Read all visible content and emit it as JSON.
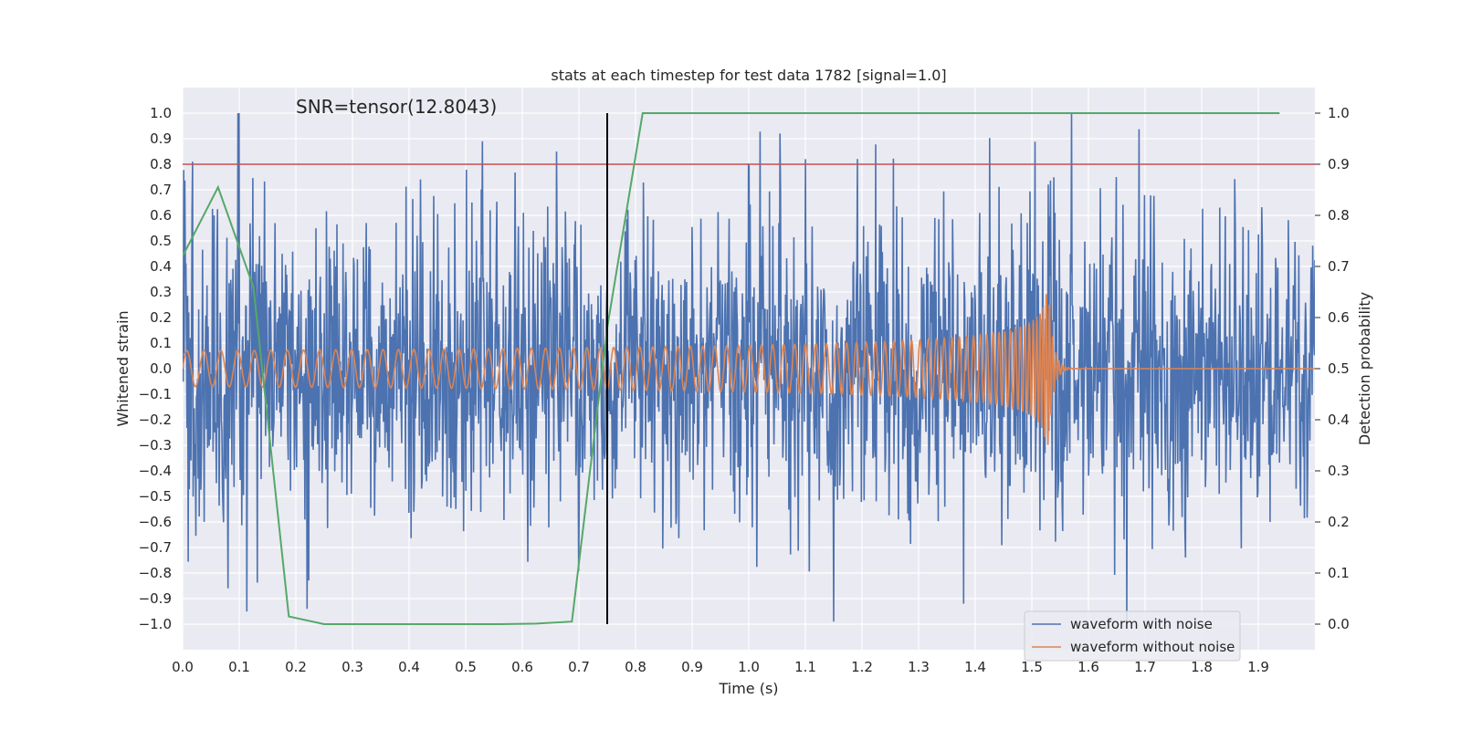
{
  "chart_data": {
    "type": "line",
    "title": "stats at each timestep for test data 1782 [signal=1.0]",
    "xlabel": "Time (s)",
    "ylabel": "Whitened strain",
    "ylabel_right": "Detection probability",
    "xlim": [
      0.0,
      2.0
    ],
    "ylim": [
      -1.1,
      1.1
    ],
    "ylim_right": [
      -0.05,
      1.05
    ],
    "xticks": [
      0.0,
      0.1,
      0.2,
      0.3,
      0.4,
      0.5,
      0.6,
      0.7,
      0.8,
      0.9,
      1.0,
      1.1,
      1.2,
      1.3,
      1.4,
      1.5,
      1.6,
      1.7,
      1.8,
      1.9
    ],
    "xtick_labels": [
      "0.0",
      "0.1",
      "0.2",
      "0.3",
      "0.4",
      "0.5",
      "0.6",
      "0.7",
      "0.8",
      "0.9",
      "1.0",
      "1.1",
      "1.2",
      "1.3",
      "1.4",
      "1.5",
      "1.6",
      "1.7",
      "1.8",
      "1.9"
    ],
    "yticks": [
      1.0,
      0.9,
      0.8,
      0.7,
      0.6,
      0.5,
      0.4,
      0.3,
      0.2,
      0.1,
      0.0,
      -0.1,
      -0.2,
      -0.3,
      -0.4,
      -0.5,
      -0.6,
      -0.7,
      -0.8,
      -0.9,
      -1.0
    ],
    "ytick_labels": [
      "1.0",
      "0.9",
      "0.8",
      "0.7",
      "0.6",
      "0.5",
      "0.4",
      "0.3",
      "0.2",
      "0.1",
      "0.0",
      "−0.1",
      "−0.2",
      "−0.3",
      "−0.4",
      "−0.5",
      "−0.6",
      "−0.7",
      "−0.8",
      "−0.9",
      "−1.0"
    ],
    "yticks_right": [
      1.0,
      0.9,
      0.8,
      0.7,
      0.6,
      0.5,
      0.4,
      0.3,
      0.2,
      0.1,
      0.0
    ],
    "ytick_labels_right": [
      "1.0",
      "0.9",
      "0.8",
      "0.7",
      "0.6",
      "0.5",
      "0.4",
      "0.3",
      "0.2",
      "0.1",
      "0.0"
    ],
    "grid": true,
    "legend_position": "bottom-right",
    "annotation": "SNR=tensor(12.8043)",
    "threshold_line": {
      "y": 0.8,
      "color": "#c44e52"
    },
    "vertical_line": {
      "x": 0.75,
      "ymin": -1.0,
      "ymax": 1.0,
      "color": "#000000"
    },
    "series": [
      {
        "name": "waveform with noise",
        "color": "#4c72b0",
        "axis": "left",
        "x_range": [
          0.0,
          2.0
        ],
        "amplitude_std": 0.3,
        "peaks": [
          {
            "x": 0.53,
            "y": 0.89
          },
          {
            "x": 0.66,
            "y": 0.85
          },
          {
            "x": 1.055,
            "y": 0.92
          },
          {
            "x": 1.1,
            "y": 0.82
          },
          {
            "x": 1.15,
            "y": -0.99
          },
          {
            "x": 1.57,
            "y": 1.0
          },
          {
            "x": 0.22,
            "y": -0.94
          },
          {
            "x": 1.38,
            "y": -0.92
          }
        ],
        "legend_label": "waveform with noise"
      },
      {
        "name": "waveform without noise",
        "color": "#dd8452",
        "axis": "left",
        "x_range": [
          0.0,
          2.0
        ],
        "chirp": {
          "start_x": 0.0,
          "merger_x": 1.53,
          "start_amplitude": 0.07,
          "peak_amplitude": 0.3,
          "start_frequency_hz": 33,
          "end_frequency_hz": 180
        },
        "legend_label": "waveform without noise"
      },
      {
        "name": "detection probability",
        "color": "#55a868",
        "axis": "right",
        "x": [
          0.0,
          0.0625,
          0.125,
          0.1875,
          0.25,
          0.3125,
          0.375,
          0.4375,
          0.5,
          0.5625,
          0.625,
          0.6875,
          0.75,
          0.8125,
          0.875,
          0.9375,
          1.0,
          1.0625,
          1.125,
          1.1875,
          1.25,
          1.3125,
          1.375,
          1.4375,
          1.5,
          1.5625,
          1.625,
          1.6875,
          1.75,
          1.8125,
          1.875,
          1.9375
        ],
        "y": [
          0.72,
          0.855,
          0.66,
          0.015,
          0.0,
          0.0,
          0.0,
          0.0,
          0.0,
          0.0,
          0.001,
          0.005,
          0.58,
          1.0,
          1.0,
          1.0,
          1.0,
          1.0,
          1.0,
          1.0,
          1.0,
          1.0,
          1.0,
          1.0,
          1.0,
          1.0,
          1.0,
          1.0,
          1.0,
          1.0,
          1.0,
          1.0
        ]
      }
    ]
  }
}
